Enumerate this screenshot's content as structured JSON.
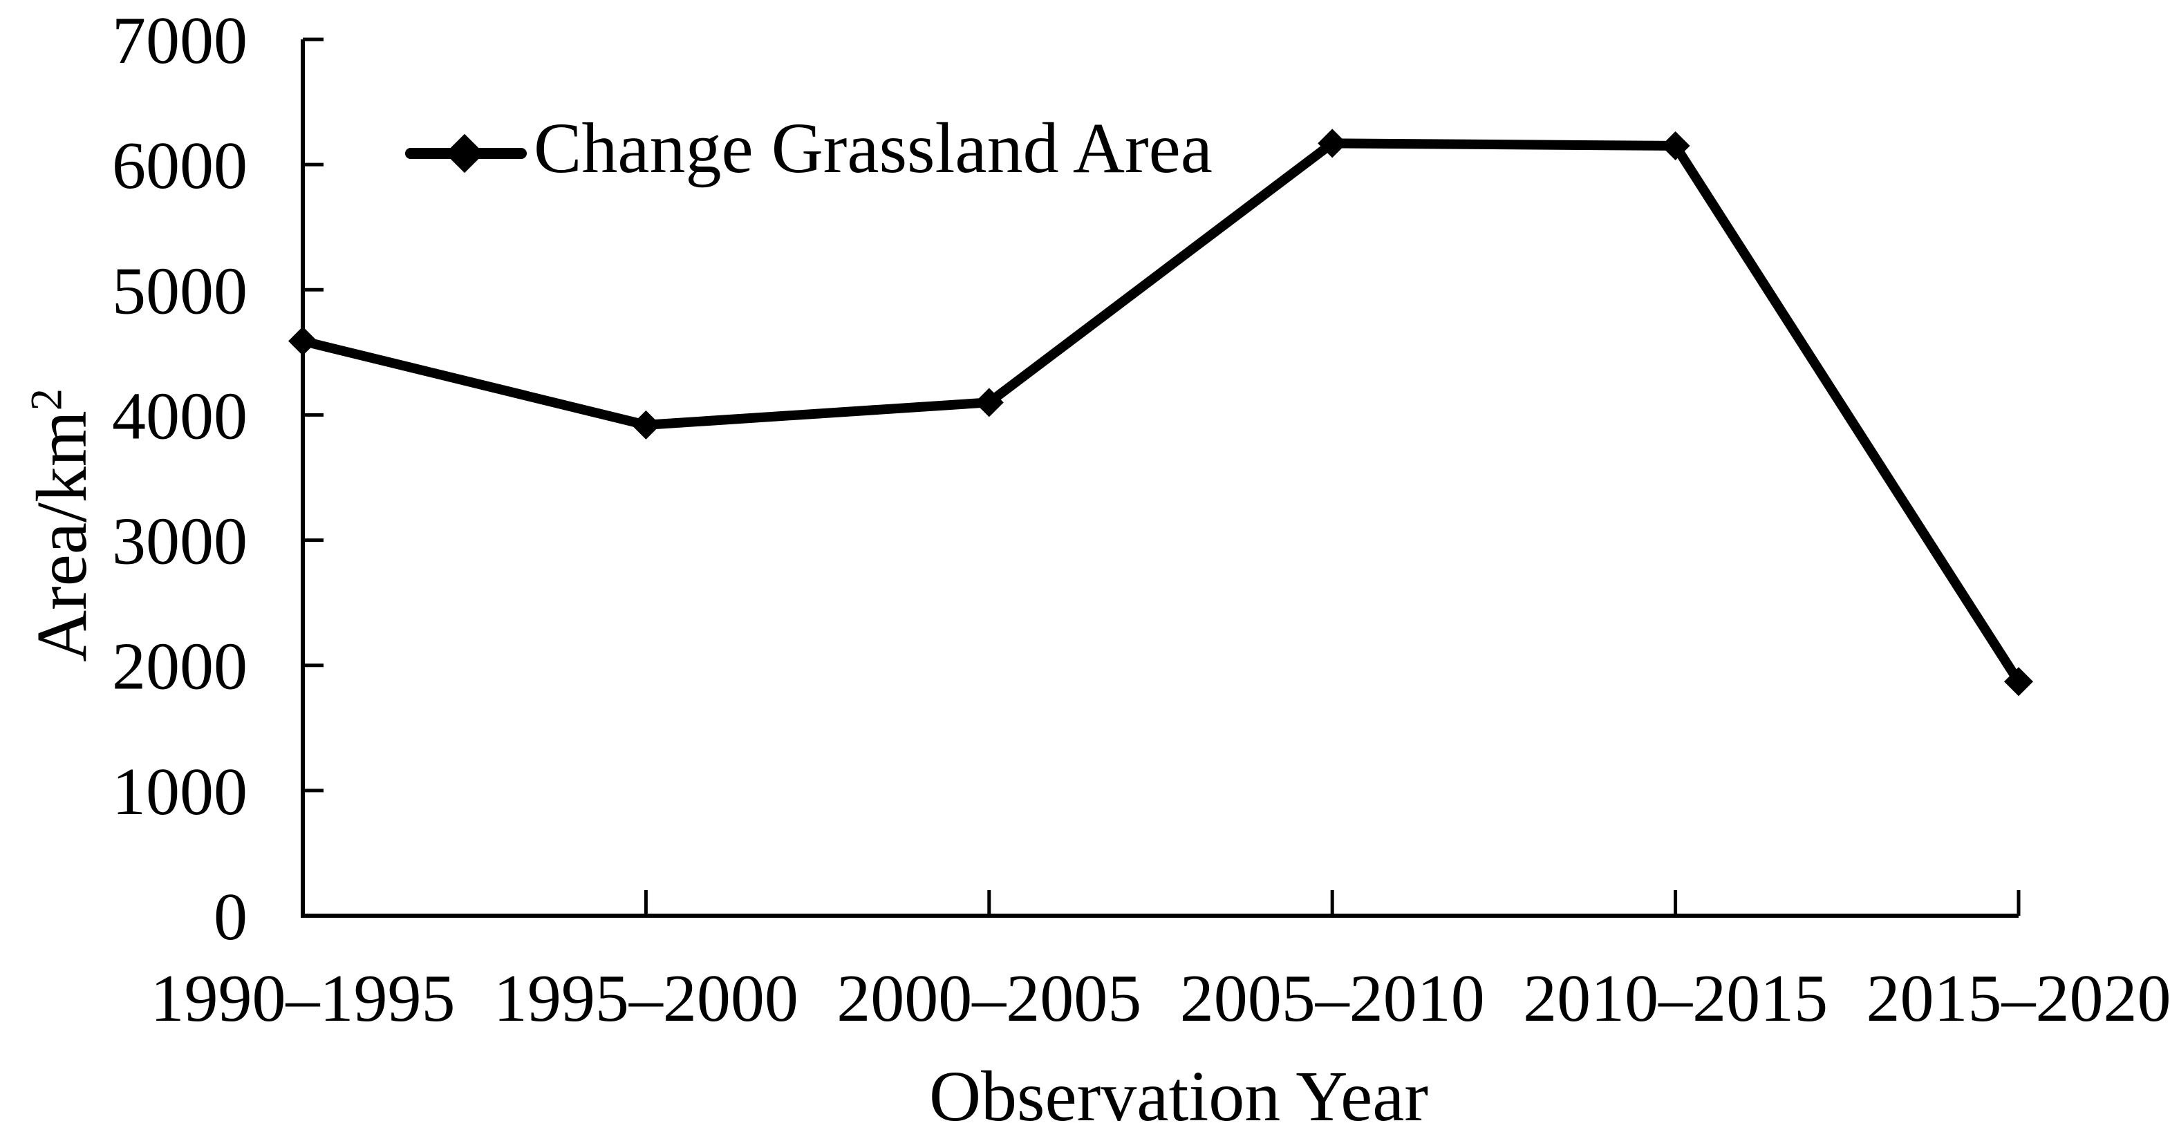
{
  "figure": {
    "background_color": "#ffffff",
    "ink_color": "#000000"
  },
  "chart_data": {
    "type": "line",
    "title": "",
    "categories": [
      "1990–1995",
      "1995–2000",
      "2000–2005",
      "2005–2010",
      "2010–2015",
      "2015–2020"
    ],
    "series": [
      {
        "name": "Change Grassland Area",
        "values": [
          4590,
          3920,
          4100,
          6170,
          6150,
          1870
        ],
        "color": "#000000",
        "marker": "diamond"
      }
    ],
    "xlabel": "Observation Year",
    "ylabel": "Area/km²",
    "ylim": [
      0,
      7000
    ],
    "y_ticks": [
      0,
      1000,
      2000,
      3000,
      4000,
      5000,
      6000,
      7000
    ],
    "grid": false,
    "legend_position": "top-left-inside",
    "tick_style": "inside"
  },
  "axes": {
    "ylabel_base": "Area/km",
    "ylabel_sup": "2",
    "xlabel": "Observation Year"
  },
  "legend": {
    "label": "Change Grassland Area",
    "marker": "diamond-on-line"
  }
}
